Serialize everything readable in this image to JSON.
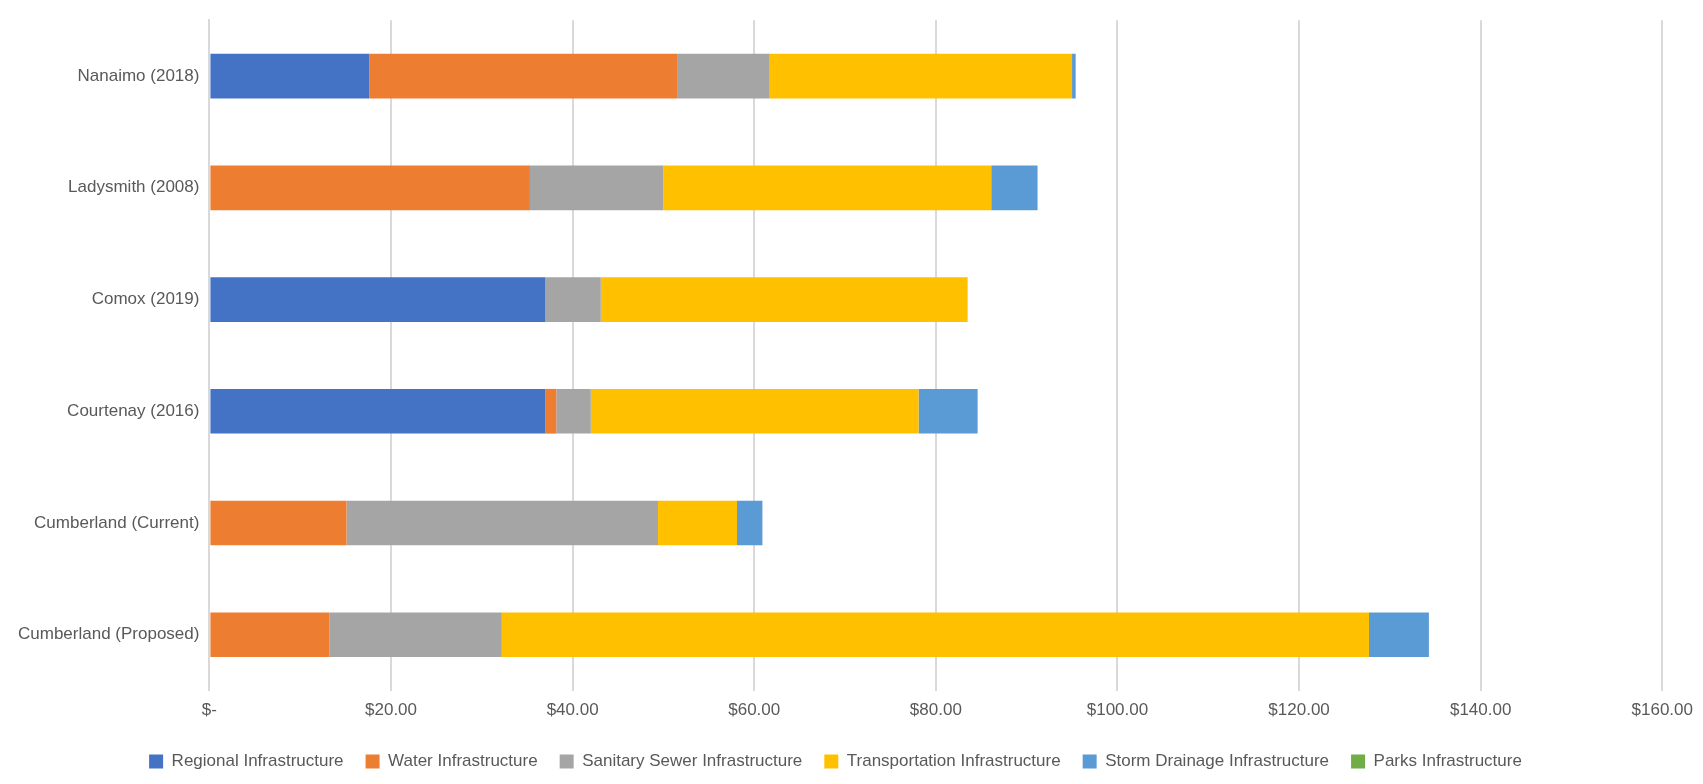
{
  "chart_data": {
    "type": "bar",
    "orientation": "horizontal",
    "stacked": true,
    "grid": "x",
    "legend": "bottom",
    "categories": [
      "Nanaimo (2018)",
      "Ladysmith (2008)",
      "Comox (2019)",
      "Courtenay (2016)",
      "Cumberland (Current)",
      "Cumberland (Proposed)"
    ],
    "xlim": [
      0,
      160
    ],
    "xticks": [
      {
        "value": 0,
        "label": "$-"
      },
      {
        "value": 20,
        "label": "$20.00"
      },
      {
        "value": 40,
        "label": "$40.00"
      },
      {
        "value": 60,
        "label": "$60.00"
      },
      {
        "value": 80,
        "label": "$80.00"
      },
      {
        "value": 100,
        "label": "$100.00"
      },
      {
        "value": 120,
        "label": "$120.00"
      },
      {
        "value": 140,
        "label": "$140.00"
      },
      {
        "value": 160,
        "label": "$160.00"
      }
    ],
    "series": [
      {
        "name": "Regional Infrastructure",
        "color": "#4472c4",
        "values": [
          17.6,
          0,
          37.0,
          37.0,
          0,
          0
        ]
      },
      {
        "name": "Water Infrastructure",
        "color": "#ed7d31",
        "values": [
          33.9,
          35.3,
          0,
          1.2,
          15.1,
          13.2
        ]
      },
      {
        "name": "Sanitary Sewer Infrastructure",
        "color": "#a5a5a5",
        "values": [
          10.2,
          14.7,
          6.1,
          3.8,
          34.3,
          19.0
        ]
      },
      {
        "name": "Transportation Infrastructure",
        "color": "#ffc000",
        "values": [
          33.3,
          36.1,
          40.4,
          36.1,
          8.7,
          95.5
        ]
      },
      {
        "name": "Storm Drainage Infrastructure",
        "color": "#5b9bd5",
        "values": [
          0.4,
          5.1,
          0,
          6.5,
          2.8,
          6.6
        ]
      },
      {
        "name": "Parks Infrastructure",
        "color": "#70ad47",
        "values": [
          0,
          0,
          0,
          0,
          0,
          0
        ]
      }
    ]
  }
}
